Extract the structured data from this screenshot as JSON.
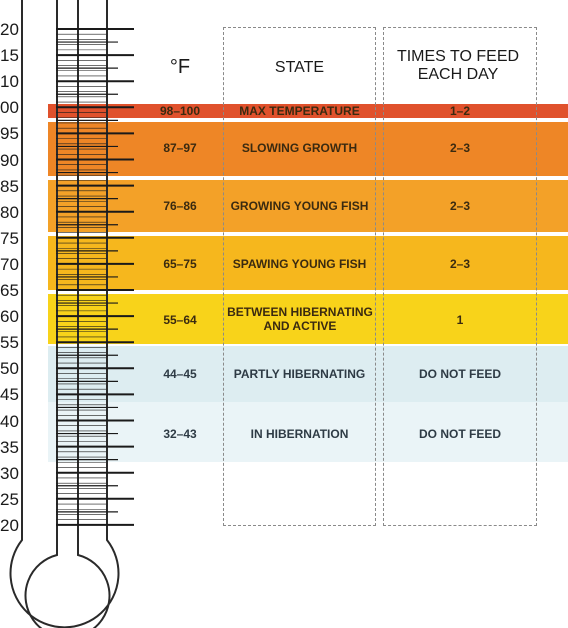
{
  "headers": {
    "temp": "°F",
    "state": "STATE",
    "feed": "TIMES TO FEED EACH DAY"
  },
  "scale": [
    "20",
    "15",
    "10",
    "00",
    "95",
    "90",
    "85",
    "80",
    "75",
    "70",
    "65",
    "60",
    "55",
    "50",
    "45",
    "40",
    "35",
    "30",
    "25",
    "20"
  ],
  "rows": [
    {
      "temp": "98–100",
      "state": "MAX TEMPERATURE",
      "feed": "1–2",
      "color": "#e0512c"
    },
    {
      "temp": "87–97",
      "state": "SLOWING GROWTH",
      "feed": "2–3",
      "color": "#ee8626"
    },
    {
      "temp": "76–86",
      "state": "GROWING YOUNG FISH",
      "feed": "2–3",
      "color": "#f3a128"
    },
    {
      "temp": "65–75",
      "state": "SPAWING YOUNG FISH",
      "feed": "2–3",
      "color": "#f6b71d"
    },
    {
      "temp": "55–64",
      "state": "BETWEEN HIBERNATING AND ACTIVE",
      "feed": "1",
      "color": "#f8d31a"
    },
    {
      "temp": "44–45",
      "state": "PARTLY HIBERNATING",
      "feed": "DO NOT FEED",
      "color": "#ddedf1"
    },
    {
      "temp": "32–43",
      "state": "IN HIBERNATION",
      "feed": "DO NOT FEED",
      "color": "#eaf4f7"
    }
  ]
}
